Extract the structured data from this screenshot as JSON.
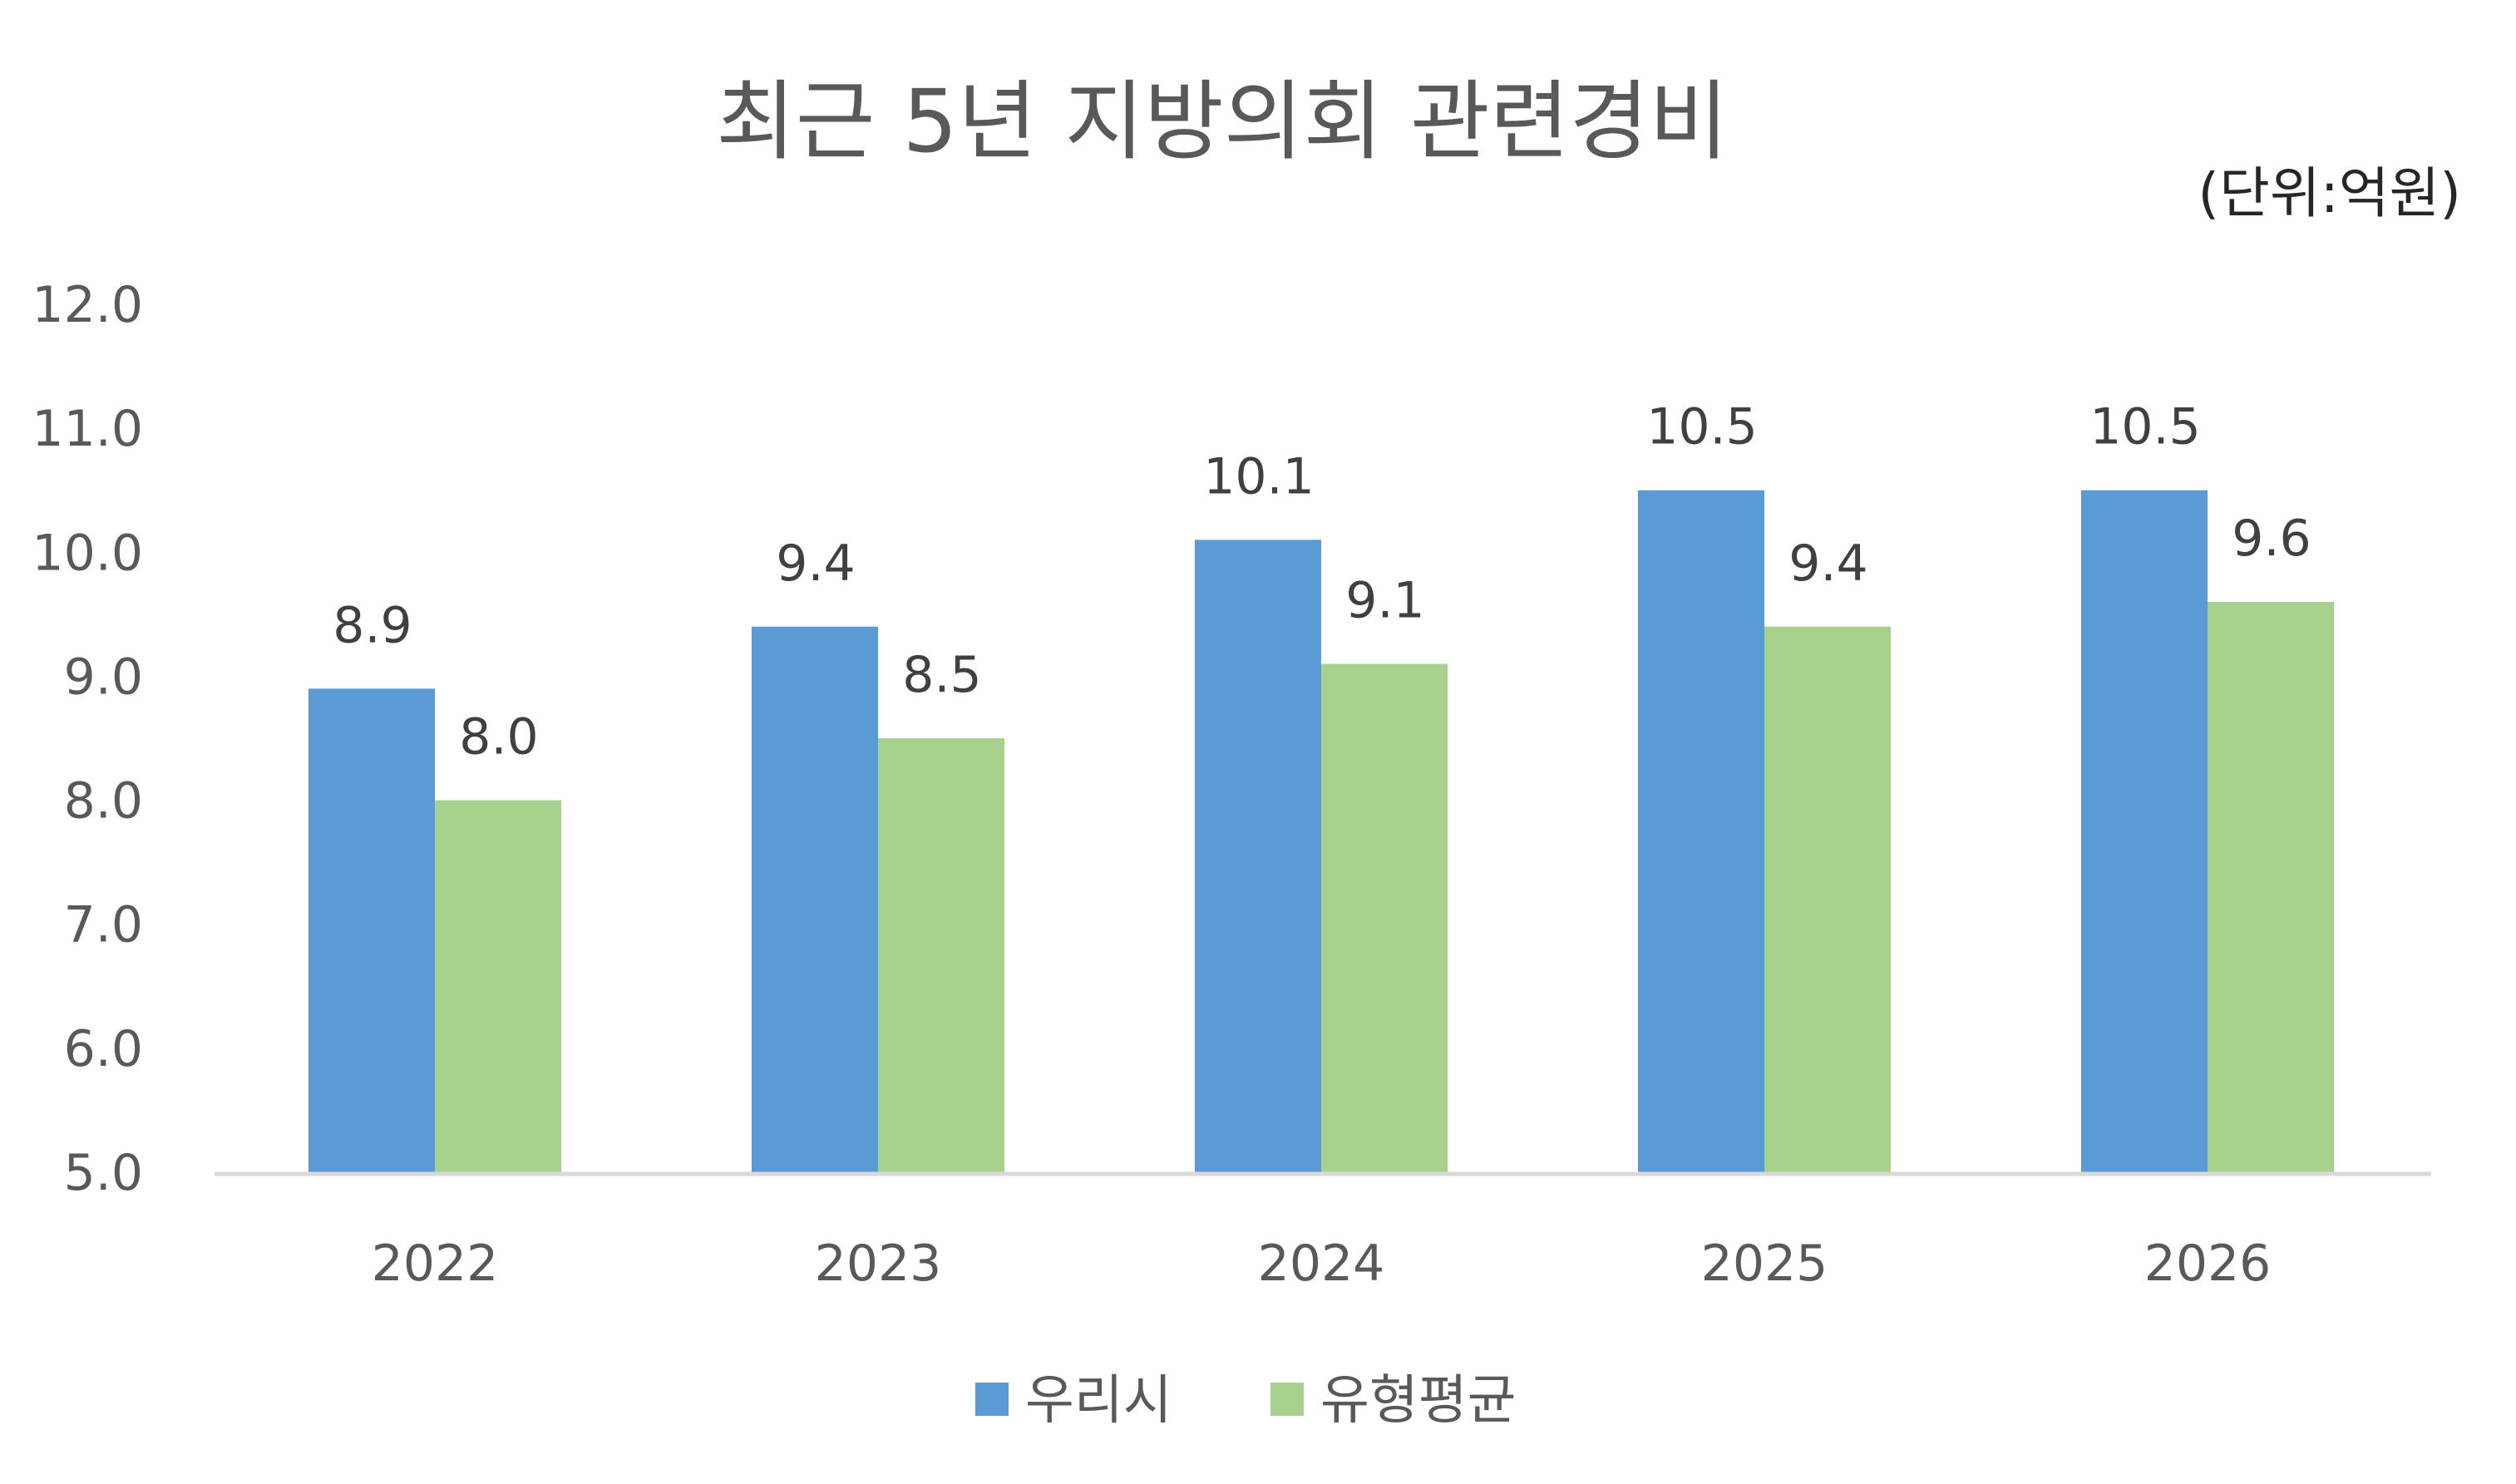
{
  "chart_data": {
    "type": "bar",
    "title": "최근 5년 지방의회 관련경비",
    "unit_label": "(단위:억원)",
    "categories": [
      "2022",
      "2023",
      "2024",
      "2025",
      "2026"
    ],
    "series": [
      {
        "name": "우리시",
        "values": [
          8.9,
          9.4,
          10.1,
          10.5,
          10.5
        ],
        "color": "#5B9BD5"
      },
      {
        "name": "유형평균",
        "values": [
          8.0,
          8.5,
          9.1,
          9.4,
          9.6
        ],
        "color": "#A9D18E"
      }
    ],
    "ylim": [
      5.0,
      12.0
    ],
    "yticks": [
      "5.0",
      "6.0",
      "7.0",
      "8.0",
      "9.0",
      "10.0",
      "11.0",
      "12.0"
    ],
    "data_labels": true,
    "grid": false,
    "legend_position": "bottom",
    "axis_color": "#D9D9D9"
  }
}
